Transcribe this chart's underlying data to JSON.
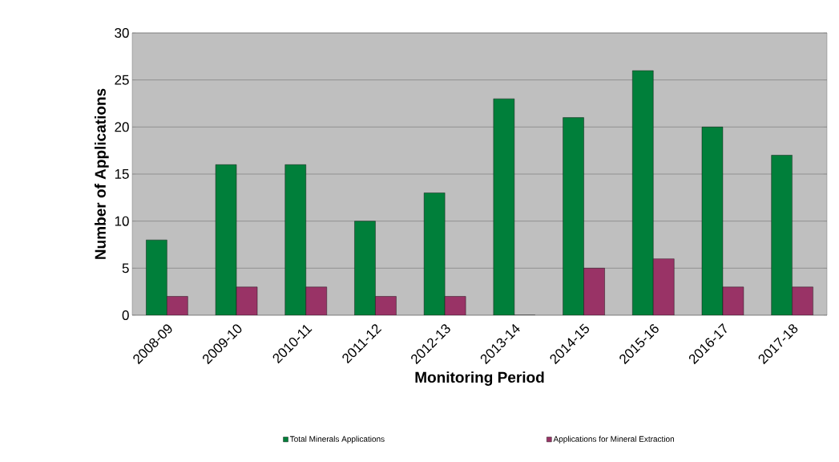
{
  "chart_data": {
    "type": "bar",
    "xlabel": "Monitoring Period",
    "ylabel": "Number of Applications",
    "categories": [
      "2008-09",
      "2009-10",
      "2010-11",
      "2011-12",
      "2012-13",
      "2013-14",
      "2014-15",
      "2015-16",
      "2016-17",
      "2017-18"
    ],
    "series": [
      {
        "name": "Total Minerals Applications",
        "color": "#007f3a",
        "values": [
          8,
          16,
          16,
          10,
          13,
          23,
          21,
          26,
          20,
          17
        ]
      },
      {
        "name": "Applications for Mineral Extraction",
        "color": "#993366",
        "values": [
          2,
          3,
          3,
          2,
          2,
          0,
          5,
          6,
          3,
          3
        ]
      }
    ],
    "ylim": [
      0,
      30
    ],
    "yticks": [
      0,
      5,
      10,
      15,
      20,
      25,
      30
    ],
    "grid": "y",
    "legend": "bottom"
  }
}
